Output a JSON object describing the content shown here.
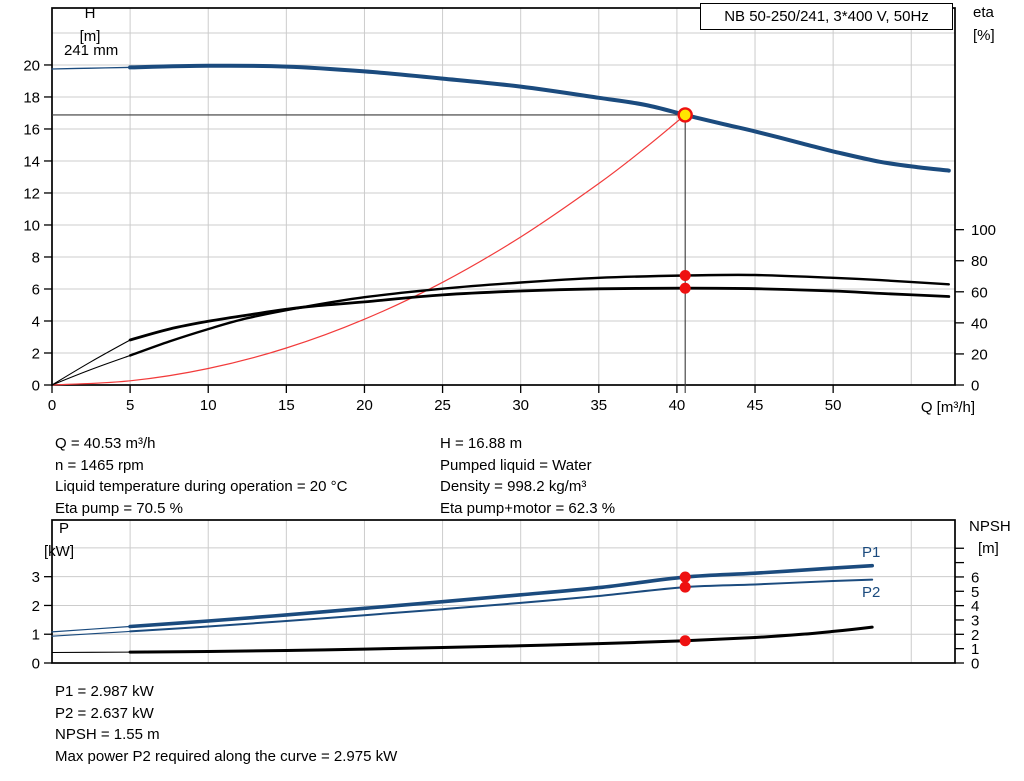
{
  "colors": {
    "curve_blue": "#1B4B7E",
    "curve_black": "#000000",
    "system_red": "#F23B3B",
    "marker_red": "#EE1111",
    "marker_yellow": "#FFE600",
    "grid": "#CCCCCC",
    "frame": "#000000",
    "annotation_line": "#3A3A3A",
    "label_blue": "#1B4B7E"
  },
  "header": {
    "title_box": "NB 50-250/241, 3*400 V, 50Hz"
  },
  "labels": {
    "h_axis": "H",
    "h_unit": "[m]",
    "eta_axis": "eta",
    "eta_unit": "[%]",
    "p_axis": "P",
    "p_unit": "[kW]",
    "npsh_axis": "NPSH",
    "npsh_unit": "[m]",
    "q_axis": "Q [m³/h]",
    "impeller": "241 mm",
    "p1": "P1",
    "p2": "P2"
  },
  "info_top_left": {
    "lines": [
      "Q = 40.53 m³/h",
      "n = 1465 rpm",
      "Liquid temperature during operation = 20 °C",
      "Eta pump = 70.5 %"
    ]
  },
  "info_top_right": {
    "lines": [
      "H = 16.88 m",
      "Pumped liquid = Water",
      "Density = 998.2 kg/m³",
      "Eta pump+motor = 62.3 %"
    ]
  },
  "info_bottom": {
    "lines": [
      "P1 = 2.987 kW",
      "P2 = 2.637 kW",
      "NPSH = 1.55 m",
      "Max power P2 required along the curve = 2.975 kW"
    ]
  },
  "chart_data": [
    {
      "type": "line",
      "name": "hq-eta-chart",
      "title": "NB 50-250/241, 3*400 V, 50Hz",
      "x_axis": {
        "label": "Q [m³/h]",
        "range": [
          0,
          57.8
        ],
        "tick_labels": [
          0,
          5,
          10,
          15,
          20,
          25,
          30,
          35,
          40,
          45,
          50
        ],
        "gridlines": [
          5,
          10,
          15,
          20,
          25,
          30,
          35,
          40,
          45,
          50,
          55
        ]
      },
      "y_left": {
        "label": "H [m]",
        "range": [
          0,
          23.56
        ],
        "tick_labels": [
          0,
          2,
          4,
          6,
          8,
          10,
          12,
          14,
          16,
          18,
          20
        ],
        "gridlines": [
          2,
          4,
          6,
          8,
          10,
          12,
          14,
          16,
          18,
          20,
          22
        ]
      },
      "y_right": {
        "label": "eta [%]",
        "range": [
          0,
          242.7
        ],
        "tick_labels": [
          0,
          20,
          40,
          60,
          80,
          100
        ]
      },
      "series": [
        {
          "name": "head-curve",
          "axis": "left",
          "color": "curve_blue",
          "width": 4,
          "thin_until": 5,
          "thin_width": 1.3,
          "points": [
            [
              0,
              19.75
            ],
            [
              2.5,
              19.8
            ],
            [
              5,
              19.85
            ],
            [
              10,
              19.95
            ],
            [
              15,
              19.9
            ],
            [
              20,
              19.6
            ],
            [
              25,
              19.15
            ],
            [
              30,
              18.65
            ],
            [
              35,
              17.95
            ],
            [
              38,
              17.5
            ],
            [
              40.53,
              16.88
            ],
            [
              43,
              16.3
            ],
            [
              45,
              15.85
            ],
            [
              48,
              15.1
            ],
            [
              50,
              14.6
            ],
            [
              53,
              13.95
            ],
            [
              55.5,
              13.6
            ],
            [
              57.4,
              13.4
            ]
          ]
        },
        {
          "name": "system-curve",
          "axis": "left",
          "color": "system_red",
          "width": 1.2,
          "points": [
            [
              0,
              0
            ],
            [
              5,
              0.26
            ],
            [
              10,
              1.03
            ],
            [
              15,
              2.31
            ],
            [
              20,
              4.11
            ],
            [
              25,
              6.42
            ],
            [
              30,
              9.25
            ],
            [
              35,
              12.59
            ],
            [
              38,
              14.84
            ],
            [
              40.53,
              16.88
            ]
          ]
        },
        {
          "name": "eta-pump-curve",
          "axis": "right",
          "color": "curve_black",
          "width": 2.4,
          "thin_until": 5,
          "thin_width": 1.1,
          "points": [
            [
              0,
              0
            ],
            [
              2.5,
              10
            ],
            [
              5,
              19
            ],
            [
              7.5,
              28
            ],
            [
              10,
              36
            ],
            [
              12.5,
              43
            ],
            [
              16,
              50
            ],
            [
              20,
              56.5
            ],
            [
              25,
              62
            ],
            [
              30,
              66
            ],
            [
              35,
              69
            ],
            [
              40.53,
              70.5
            ],
            [
              45,
              70.8
            ],
            [
              50,
              69
            ],
            [
              53,
              67.5
            ],
            [
              57.4,
              64.8
            ]
          ]
        },
        {
          "name": "eta-pump-motor-curve",
          "axis": "right",
          "color": "curve_black",
          "width": 2.8,
          "thin_until": 5,
          "thin_width": 1.1,
          "points": [
            [
              0,
              0
            ],
            [
              2.5,
              15
            ],
            [
              5,
              29
            ],
            [
              7.5,
              36
            ],
            [
              10,
              41
            ],
            [
              12.5,
              45
            ],
            [
              16,
              50
            ],
            [
              20,
              53.5
            ],
            [
              25,
              58
            ],
            [
              30,
              60.5
            ],
            [
              35,
              61.9
            ],
            [
              40.53,
              62.3
            ],
            [
              45,
              62
            ],
            [
              50,
              60.5
            ],
            [
              53,
              59
            ],
            [
              57.4,
              57
            ]
          ]
        }
      ],
      "operating_point": {
        "Q": 40.53,
        "H": 16.88,
        "eta_pump": 70.5,
        "eta_pump_motor": 62.3
      },
      "duty_markers": [
        {
          "axis": "left",
          "q": 40.53,
          "v": 16.88,
          "style": "yellow"
        },
        {
          "axis": "right",
          "q": 40.53,
          "v": 70.5,
          "style": "red"
        },
        {
          "axis": "right",
          "q": 40.53,
          "v": 62.3,
          "style": "red"
        }
      ]
    },
    {
      "type": "line",
      "name": "power-npsh-chart",
      "x_axis": {
        "label": "",
        "range": [
          0,
          57.8
        ],
        "tick_labels": [],
        "gridlines": [
          5,
          10,
          15,
          20,
          25,
          30,
          35,
          40,
          45,
          50,
          55
        ]
      },
      "y_left": {
        "label": "P [kW]",
        "range": [
          0,
          4.97
        ],
        "tick_labels": [
          0,
          1,
          2,
          3
        ],
        "gridlines": [
          1,
          2,
          3,
          4
        ]
      },
      "y_right": {
        "label": "NPSH [m]",
        "range": [
          0,
          9.97
        ],
        "tick_labels": [
          0,
          1,
          2,
          3,
          4,
          5,
          6
        ],
        "tick_marks": [
          0,
          1,
          2,
          3,
          4,
          5,
          6,
          7,
          8
        ]
      },
      "series": [
        {
          "name": "p1-curve",
          "axis": "left",
          "color": "curve_blue",
          "width": 3.6,
          "thin_until": 5,
          "thin_width": 1.2,
          "points": [
            [
              0,
              1.08
            ],
            [
              5,
              1.27
            ],
            [
              10,
              1.46
            ],
            [
              15,
              1.67
            ],
            [
              20,
              1.9
            ],
            [
              25,
              2.13
            ],
            [
              30,
              2.37
            ],
            [
              35,
              2.62
            ],
            [
              40.53,
              2.987
            ],
            [
              45,
              3.12
            ],
            [
              50,
              3.3
            ],
            [
              52.5,
              3.38
            ]
          ]
        },
        {
          "name": "p2-curve",
          "axis": "left",
          "color": "curve_blue",
          "width": 2,
          "thin_until": 5,
          "thin_width": 1.1,
          "points": [
            [
              0,
              0.93
            ],
            [
              5,
              1.1
            ],
            [
              10,
              1.27
            ],
            [
              15,
              1.46
            ],
            [
              20,
              1.66
            ],
            [
              25,
              1.87
            ],
            [
              30,
              2.09
            ],
            [
              35,
              2.33
            ],
            [
              40.53,
              2.637
            ],
            [
              45,
              2.73
            ],
            [
              50,
              2.85
            ],
            [
              52.5,
              2.9
            ]
          ]
        },
        {
          "name": "npsh-curve",
          "axis": "right",
          "color": "curve_black",
          "width": 3,
          "thin_until": 5,
          "thin_width": 1.1,
          "points": [
            [
              0,
              0.73
            ],
            [
              5,
              0.76
            ],
            [
              10,
              0.8
            ],
            [
              15,
              0.87
            ],
            [
              20,
              0.97
            ],
            [
              25,
              1.08
            ],
            [
              30,
              1.2
            ],
            [
              35,
              1.35
            ],
            [
              40.53,
              1.55
            ],
            [
              45,
              1.78
            ],
            [
              48,
              2.0
            ],
            [
              50,
              2.2
            ],
            [
              52.5,
              2.5
            ]
          ]
        }
      ],
      "values": {
        "P1_kW": 2.987,
        "P2_kW": 2.637,
        "NPSH_m": 1.55,
        "max_P2_kW": 2.975
      },
      "duty_markers": [
        {
          "axis": "left",
          "q": 40.53,
          "v": 2.987,
          "style": "red"
        },
        {
          "axis": "left",
          "q": 40.53,
          "v": 2.637,
          "style": "red"
        },
        {
          "axis": "right",
          "q": 40.53,
          "v": 1.55,
          "style": "red"
        }
      ]
    }
  ]
}
